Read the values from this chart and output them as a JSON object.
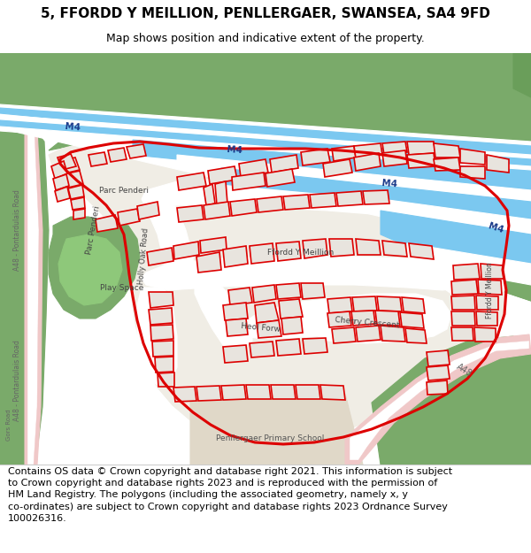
{
  "title": "5, FFORDD Y MEILLION, PENLLERGAER, SWANSEA, SA4 9FD",
  "subtitle": "Map shows position and indicative extent of the property.",
  "footer_line1": "Contains OS data © Crown copyright and database right 2021. This information is subject",
  "footer_line2": "to Crown copyright and database rights 2023 and is reproduced with the permission of",
  "footer_line3": "HM Land Registry. The polygons (including the associated geometry, namely x, y",
  "footer_line4": "co-ordinates) are subject to Crown copyright and database rights 2023 Ordnance Survey",
  "footer_line5": "100026316.",
  "bg_map": "#f0ede5",
  "green1": "#7aaa6a",
  "green2": "#6a9e5a",
  "green3": "#8ab87a",
  "blue_road": "#7bc8f0",
  "white_road": "#ffffff",
  "pink_road": "#f0c8c8",
  "building_fill": "#e8e4de",
  "building_red": "#dd0000",
  "school_fill": "#e0d8c8",
  "gray_bldg": "#d8d4cc"
}
